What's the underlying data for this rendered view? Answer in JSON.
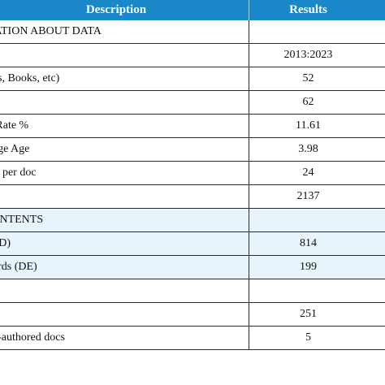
{
  "header": {
    "description": "Description",
    "results": "Results"
  },
  "rows": [
    {
      "description": "MATION ABOUT DATA",
      "result": "",
      "blue": false
    },
    {
      "description": "",
      "result": "2013:2023",
      "blue": false
    },
    {
      "description": "nals, Books, etc)",
      "result": "52",
      "blue": false
    },
    {
      "description": "",
      "result": "62",
      "blue": false
    },
    {
      "description": "th Rate %",
      "result": "11.61",
      "blue": false
    },
    {
      "description": "erage Age",
      "result": "3.98",
      "blue": false
    },
    {
      "description": "ons per doc",
      "result": "24",
      "blue": false
    },
    {
      "description": "",
      "result": "2137",
      "blue": false
    },
    {
      "description": "CONTENTS",
      "result": "",
      "blue": true
    },
    {
      "description": "s (ID)",
      "result": "814",
      "blue": true
    },
    {
      "description": "words (DE)",
      "result": "199",
      "blue": true
    },
    {
      "description": "",
      "result": "",
      "blue": false
    },
    {
      "description": "",
      "result": "251",
      "blue": false
    },
    {
      "description": "gle-authored docs",
      "result": "5",
      "blue": false
    }
  ]
}
